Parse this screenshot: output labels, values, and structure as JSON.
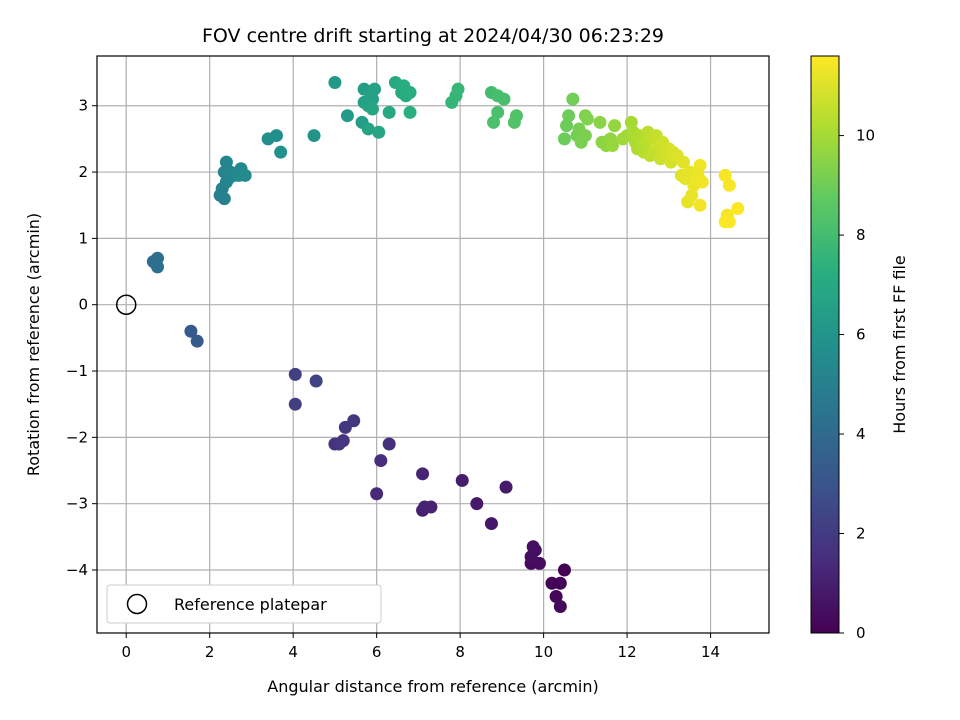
{
  "chart_data": {
    "type": "scatter",
    "title": "FOV centre drift starting at 2024/04/30 06:23:29",
    "xlabel": "Angular distance from reference (arcmin)",
    "ylabel": "Rotation from reference (arcmin)",
    "xlim": [
      -0.7,
      15.4
    ],
    "ylim": [
      -4.95,
      3.75
    ],
    "xticks": [
      0,
      2,
      4,
      6,
      8,
      10,
      12,
      14
    ],
    "yticks": [
      -4,
      -3,
      -2,
      -1,
      0,
      1,
      2,
      3
    ],
    "grid": true,
    "legend": {
      "position": "lower-left",
      "entries": [
        "Reference platepar"
      ]
    },
    "reference_point": {
      "x": 0,
      "y": 0,
      "label": "Reference platepar"
    },
    "colorbar": {
      "label": "Hours from first FF file",
      "colormap": "viridis",
      "range": [
        0,
        11.6
      ],
      "ticks": [
        0,
        2,
        4,
        6,
        8,
        10
      ]
    },
    "points": [
      {
        "x": 10.5,
        "y": -4.0,
        "c": 0.0
      },
      {
        "x": 10.4,
        "y": -4.2,
        "c": 0.1
      },
      {
        "x": 10.2,
        "y": -4.2,
        "c": 0.1
      },
      {
        "x": 10.3,
        "y": -4.4,
        "c": 0.15
      },
      {
        "x": 10.4,
        "y": -4.55,
        "c": 0.2
      },
      {
        "x": 9.7,
        "y": -3.9,
        "c": 0.3
      },
      {
        "x": 9.9,
        "y": -3.9,
        "c": 0.35
      },
      {
        "x": 9.8,
        "y": -3.7,
        "c": 0.4
      },
      {
        "x": 9.7,
        "y": -3.8,
        "c": 0.45
      },
      {
        "x": 9.75,
        "y": -3.65,
        "c": 0.5
      },
      {
        "x": 8.75,
        "y": -3.3,
        "c": 0.7
      },
      {
        "x": 8.4,
        "y": -3.0,
        "c": 0.8
      },
      {
        "x": 9.1,
        "y": -2.75,
        "c": 0.85
      },
      {
        "x": 8.05,
        "y": -2.65,
        "c": 0.9
      },
      {
        "x": 7.1,
        "y": -3.1,
        "c": 1.0
      },
      {
        "x": 7.15,
        "y": -3.05,
        "c": 1.1
      },
      {
        "x": 7.3,
        "y": -3.05,
        "c": 1.15
      },
      {
        "x": 7.1,
        "y": -2.55,
        "c": 1.2
      },
      {
        "x": 6.0,
        "y": -2.85,
        "c": 1.4
      },
      {
        "x": 6.1,
        "y": -2.35,
        "c": 1.5
      },
      {
        "x": 6.3,
        "y": -2.1,
        "c": 1.55
      },
      {
        "x": 5.0,
        "y": -2.1,
        "c": 1.7
      },
      {
        "x": 5.2,
        "y": -2.05,
        "c": 1.75
      },
      {
        "x": 5.1,
        "y": -2.1,
        "c": 1.8
      },
      {
        "x": 5.25,
        "y": -1.85,
        "c": 1.85
      },
      {
        "x": 5.45,
        "y": -1.75,
        "c": 1.9
      },
      {
        "x": 4.05,
        "y": -1.5,
        "c": 2.1
      },
      {
        "x": 4.05,
        "y": -1.05,
        "c": 2.2
      },
      {
        "x": 4.55,
        "y": -1.15,
        "c": 2.3
      },
      {
        "x": 1.55,
        "y": -0.4,
        "c": 3.2
      },
      {
        "x": 1.7,
        "y": -0.55,
        "c": 3.3
      },
      {
        "x": 0.65,
        "y": 0.65,
        "c": 4.1
      },
      {
        "x": 0.75,
        "y": 0.7,
        "c": 4.2
      },
      {
        "x": 0.75,
        "y": 0.57,
        "c": 4.25
      },
      {
        "x": 2.25,
        "y": 1.65,
        "c": 4.9
      },
      {
        "x": 2.35,
        "y": 1.6,
        "c": 5.0
      },
      {
        "x": 2.3,
        "y": 1.75,
        "c": 5.05
      },
      {
        "x": 2.4,
        "y": 1.85,
        "c": 5.1
      },
      {
        "x": 2.35,
        "y": 2.0,
        "c": 5.15
      },
      {
        "x": 2.45,
        "y": 1.9,
        "c": 5.2
      },
      {
        "x": 2.4,
        "y": 2.15,
        "c": 5.25
      },
      {
        "x": 2.5,
        "y": 2.0,
        "c": 5.3
      },
      {
        "x": 2.6,
        "y": 1.95,
        "c": 5.35
      },
      {
        "x": 2.75,
        "y": 2.05,
        "c": 5.4
      },
      {
        "x": 2.85,
        "y": 1.95,
        "c": 5.45
      },
      {
        "x": 2.7,
        "y": 1.95,
        "c": 5.5
      },
      {
        "x": 3.4,
        "y": 2.5,
        "c": 5.7
      },
      {
        "x": 3.6,
        "y": 2.55,
        "c": 5.75
      },
      {
        "x": 3.7,
        "y": 2.3,
        "c": 5.8
      },
      {
        "x": 4.5,
        "y": 2.55,
        "c": 6.0
      },
      {
        "x": 5.0,
        "y": 3.35,
        "c": 6.2
      },
      {
        "x": 5.3,
        "y": 2.85,
        "c": 6.3
      },
      {
        "x": 5.65,
        "y": 2.75,
        "c": 6.35
      },
      {
        "x": 5.7,
        "y": 3.25,
        "c": 6.4
      },
      {
        "x": 5.8,
        "y": 3.0,
        "c": 6.45
      },
      {
        "x": 5.85,
        "y": 3.2,
        "c": 6.5
      },
      {
        "x": 5.9,
        "y": 3.1,
        "c": 6.55
      },
      {
        "x": 5.95,
        "y": 3.25,
        "c": 6.6
      },
      {
        "x": 5.7,
        "y": 3.05,
        "c": 6.65
      },
      {
        "x": 5.8,
        "y": 2.65,
        "c": 6.7
      },
      {
        "x": 6.05,
        "y": 2.6,
        "c": 6.75
      },
      {
        "x": 5.9,
        "y": 2.95,
        "c": 6.8
      },
      {
        "x": 6.3,
        "y": 2.9,
        "c": 6.95
      },
      {
        "x": 6.45,
        "y": 3.35,
        "c": 7.0
      },
      {
        "x": 6.6,
        "y": 3.2,
        "c": 7.05
      },
      {
        "x": 6.7,
        "y": 3.15,
        "c": 7.1
      },
      {
        "x": 6.65,
        "y": 3.3,
        "c": 7.15
      },
      {
        "x": 6.8,
        "y": 3.2,
        "c": 7.2
      },
      {
        "x": 6.8,
        "y": 2.9,
        "c": 7.3
      },
      {
        "x": 7.8,
        "y": 3.05,
        "c": 7.6
      },
      {
        "x": 7.9,
        "y": 3.15,
        "c": 7.65
      },
      {
        "x": 7.95,
        "y": 3.25,
        "c": 7.7
      },
      {
        "x": 8.75,
        "y": 3.2,
        "c": 8.0
      },
      {
        "x": 8.9,
        "y": 3.15,
        "c": 8.05
      },
      {
        "x": 9.05,
        "y": 3.1,
        "c": 8.1
      },
      {
        "x": 8.9,
        "y": 2.9,
        "c": 8.15
      },
      {
        "x": 8.8,
        "y": 2.75,
        "c": 8.2
      },
      {
        "x": 9.35,
        "y": 2.85,
        "c": 8.3
      },
      {
        "x": 9.3,
        "y": 2.75,
        "c": 8.35
      },
      {
        "x": 10.5,
        "y": 2.5,
        "c": 8.9
      },
      {
        "x": 10.55,
        "y": 2.7,
        "c": 8.95
      },
      {
        "x": 10.6,
        "y": 2.85,
        "c": 9.0
      },
      {
        "x": 10.7,
        "y": 3.1,
        "c": 9.05
      },
      {
        "x": 10.8,
        "y": 2.55,
        "c": 9.1
      },
      {
        "x": 10.85,
        "y": 2.65,
        "c": 9.15
      },
      {
        "x": 10.9,
        "y": 2.45,
        "c": 9.2
      },
      {
        "x": 11.0,
        "y": 2.55,
        "c": 9.25
      },
      {
        "x": 11.0,
        "y": 2.85,
        "c": 9.3
      },
      {
        "x": 11.05,
        "y": 2.8,
        "c": 9.35
      },
      {
        "x": 11.35,
        "y": 2.75,
        "c": 9.5
      },
      {
        "x": 11.4,
        "y": 2.45,
        "c": 9.55
      },
      {
        "x": 11.5,
        "y": 2.4,
        "c": 9.6
      },
      {
        "x": 11.6,
        "y": 2.5,
        "c": 9.65
      },
      {
        "x": 11.7,
        "y": 2.7,
        "c": 9.7
      },
      {
        "x": 11.65,
        "y": 2.4,
        "c": 9.75
      },
      {
        "x": 11.9,
        "y": 2.5,
        "c": 9.9
      },
      {
        "x": 12.0,
        "y": 2.55,
        "c": 9.95
      },
      {
        "x": 12.1,
        "y": 2.75,
        "c": 10.0
      },
      {
        "x": 12.15,
        "y": 2.6,
        "c": 10.05
      },
      {
        "x": 12.2,
        "y": 2.45,
        "c": 10.1
      },
      {
        "x": 12.25,
        "y": 2.35,
        "c": 10.15
      },
      {
        "x": 12.3,
        "y": 2.55,
        "c": 10.2
      },
      {
        "x": 12.35,
        "y": 2.4,
        "c": 10.25
      },
      {
        "x": 12.4,
        "y": 2.3,
        "c": 10.3
      },
      {
        "x": 12.45,
        "y": 2.45,
        "c": 10.35
      },
      {
        "x": 12.5,
        "y": 2.6,
        "c": 10.4
      },
      {
        "x": 12.55,
        "y": 2.25,
        "c": 10.45
      },
      {
        "x": 12.6,
        "y": 2.5,
        "c": 10.5
      },
      {
        "x": 12.65,
        "y": 2.3,
        "c": 10.55
      },
      {
        "x": 12.7,
        "y": 2.55,
        "c": 10.6
      },
      {
        "x": 12.75,
        "y": 2.4,
        "c": 10.65
      },
      {
        "x": 12.8,
        "y": 2.2,
        "c": 10.7
      },
      {
        "x": 12.85,
        "y": 2.45,
        "c": 10.75
      },
      {
        "x": 12.9,
        "y": 2.3,
        "c": 10.8
      },
      {
        "x": 13.0,
        "y": 2.35,
        "c": 10.85
      },
      {
        "x": 13.05,
        "y": 2.15,
        "c": 10.9
      },
      {
        "x": 13.1,
        "y": 2.3,
        "c": 10.95
      },
      {
        "x": 13.2,
        "y": 2.25,
        "c": 11.0
      },
      {
        "x": 13.3,
        "y": 1.95,
        "c": 11.05
      },
      {
        "x": 13.35,
        "y": 2.15,
        "c": 11.1
      },
      {
        "x": 13.4,
        "y": 1.9,
        "c": 11.15
      },
      {
        "x": 13.45,
        "y": 1.55,
        "c": 11.2
      },
      {
        "x": 13.5,
        "y": 2.0,
        "c": 11.2
      },
      {
        "x": 13.55,
        "y": 1.65,
        "c": 11.25
      },
      {
        "x": 13.6,
        "y": 1.8,
        "c": 11.3
      },
      {
        "x": 13.7,
        "y": 1.95,
        "c": 11.3
      },
      {
        "x": 13.75,
        "y": 2.1,
        "c": 11.35
      },
      {
        "x": 13.75,
        "y": 1.5,
        "c": 11.4
      },
      {
        "x": 13.8,
        "y": 1.85,
        "c": 11.4
      },
      {
        "x": 14.35,
        "y": 1.95,
        "c": 11.45
      },
      {
        "x": 14.45,
        "y": 1.8,
        "c": 11.5
      },
      {
        "x": 14.4,
        "y": 1.35,
        "c": 11.5
      },
      {
        "x": 14.35,
        "y": 1.25,
        "c": 11.55
      },
      {
        "x": 14.45,
        "y": 1.25,
        "c": 11.55
      },
      {
        "x": 14.65,
        "y": 1.45,
        "c": 11.6
      }
    ]
  }
}
